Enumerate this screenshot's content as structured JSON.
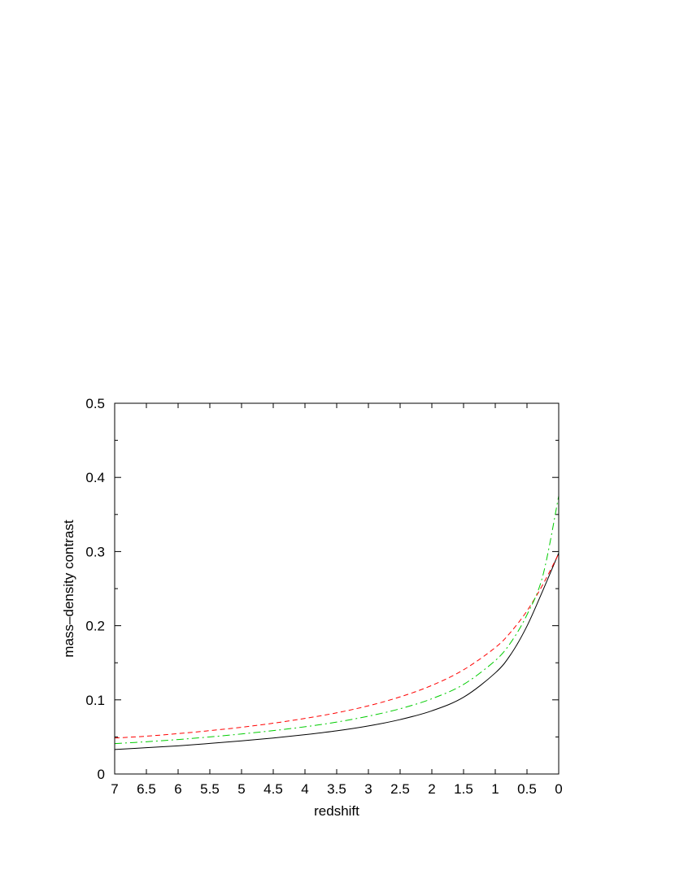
{
  "chart_data": {
    "type": "line",
    "title": "",
    "xlabel": "redshift",
    "ylabel": "mass–density contrast",
    "xlim": [
      7,
      0
    ],
    "ylim": [
      0,
      0.5
    ],
    "x_reversed": true,
    "grid": false,
    "legend": "none",
    "x_ticks": [
      "7",
      "6.5",
      "6",
      "5.5",
      "5",
      "4.5",
      "4",
      "3.5",
      "3",
      "2.5",
      "2",
      "1.5",
      "1",
      "0.5",
      "0"
    ],
    "y_ticks": [
      "0",
      "0.1",
      "0.2",
      "0.3",
      "0.4",
      "0.5"
    ],
    "x": [
      7,
      6.5,
      6,
      5.5,
      5,
      4.5,
      4,
      3.5,
      3,
      2.5,
      2,
      1.5,
      1,
      0.75,
      0.5,
      0.25,
      0
    ],
    "series": [
      {
        "style": "solid",
        "color": "#000000",
        "values": [
          0.033,
          0.0355,
          0.038,
          0.0412,
          0.0447,
          0.0485,
          0.053,
          0.0582,
          0.0648,
          0.0734,
          0.0852,
          0.1035,
          0.1363,
          0.162,
          0.1995,
          0.2475,
          0.298
        ]
      },
      {
        "style": "dashed",
        "color": "#ff0000",
        "values": [
          0.0485,
          0.051,
          0.0545,
          0.0585,
          0.063,
          0.0685,
          0.075,
          0.0825,
          0.092,
          0.104,
          0.1195,
          0.1405,
          0.1705,
          0.192,
          0.22,
          0.2555,
          0.297
        ]
      },
      {
        "style": "dash-dot",
        "color": "#00cc00",
        "values": [
          0.041,
          0.0435,
          0.0465,
          0.05,
          0.054,
          0.0585,
          0.0637,
          0.07,
          0.078,
          0.088,
          0.1015,
          0.1208,
          0.153,
          0.178,
          0.2148,
          0.2675,
          0.375
        ]
      }
    ]
  }
}
